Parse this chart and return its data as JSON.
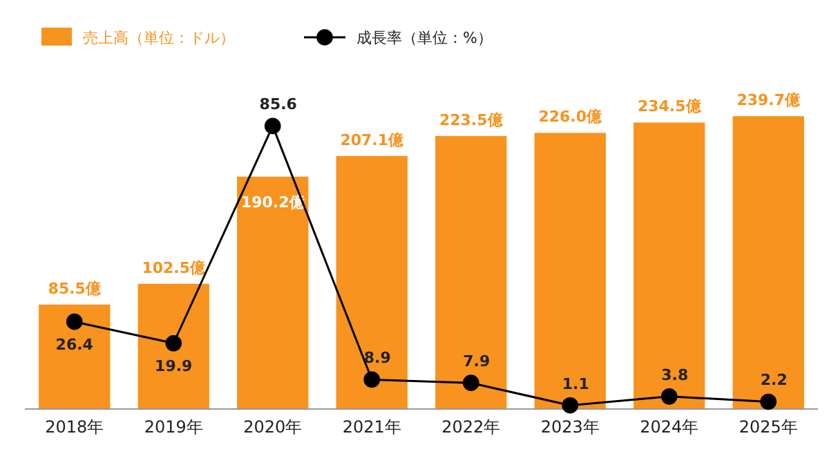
{
  "chart_data": {
    "type": "bar",
    "categories": [
      "2018年",
      "2019年",
      "2020年",
      "2021年",
      "2022年",
      "2023年",
      "2024年",
      "2025年"
    ],
    "legend": "top left",
    "series": [
      {
        "name": "売上高（単位：ドル）",
        "color": "#f7931e",
        "values": [
          85.5,
          102.5,
          190.2,
          207.1,
          223.5,
          226.0,
          234.5,
          239.7
        ],
        "value_labels": [
          "85.5億",
          "102.5億",
          "190.2億",
          "207.1億",
          "223.5億",
          "226.0億",
          "234.5億",
          "239.7億"
        ]
      },
      {
        "name": "成長率（単位：%）",
        "type": "line",
        "axis": "y2",
        "color": "#000000",
        "marker": "circle",
        "values": [
          26.4,
          19.9,
          85.6,
          8.9,
          7.9,
          1.1,
          3.8,
          2.2
        ],
        "value_labels": [
          "26.4",
          "19.9",
          "85.6",
          "8.9",
          "7.9",
          "1.1",
          "3.8",
          "2.2"
        ]
      }
    ]
  }
}
